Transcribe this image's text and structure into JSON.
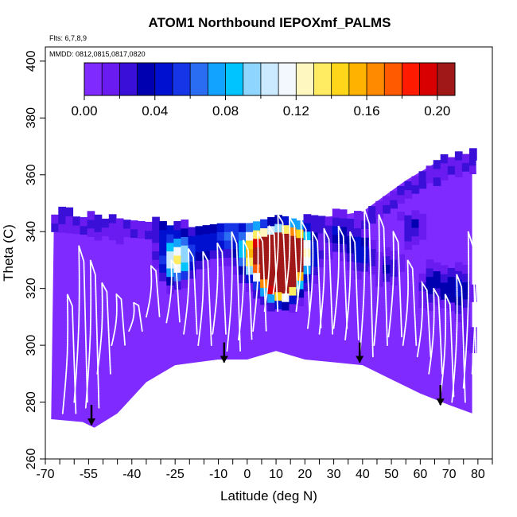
{
  "chart_data": {
    "type": "heatmap",
    "title": "ATOM1 Northbound IEPOXmf_PALMS",
    "xlabel": "Latitude (deg N)",
    "ylabel": "Theta (C)",
    "xlim": [
      -70,
      85
    ],
    "ylim": [
      260,
      405
    ],
    "x_ticks_labeled": [
      -70,
      -55,
      -40,
      -25,
      -10,
      0,
      10,
      20,
      30,
      40,
      50,
      60,
      70,
      80
    ],
    "x_ticks_minor": [
      -65,
      -60,
      -50,
      -45,
      -35,
      -30,
      -20,
      -15,
      -5,
      5,
      15,
      25,
      35,
      45,
      55,
      65,
      75,
      85
    ],
    "y_ticks": [
      260,
      280,
      300,
      320,
      340,
      360,
      380,
      400
    ],
    "flights_note": "Flts: 6,7,8,9",
    "dates_note": "MMDD: 0812,0815,0817,0820",
    "colorbar": {
      "range": [
        0.0,
        0.21
      ],
      "tick_values": [
        0.0,
        0.04,
        0.08,
        0.12,
        0.16,
        0.2
      ],
      "tick_labels": [
        "0.00",
        "0.04",
        "0.08",
        "0.12",
        "0.16",
        "0.20"
      ],
      "colors": [
        "#7f2aff",
        "#6a1bf0",
        "#3a0fd8",
        "#0000b0",
        "#0010d0",
        "#1535e6",
        "#2a6cf2",
        "#12a2ff",
        "#00c4ff",
        "#8ed6ff",
        "#cbe9ff",
        "#f3f8ff",
        "#fff7c0",
        "#ffec62",
        "#ffd61a",
        "#ffb300",
        "#ff8a00",
        "#ff5a00",
        "#ff1a00",
        "#d80000",
        "#a01818"
      ]
    },
    "background_value": 0.0,
    "envelope_lower": [
      [
        -68,
        274
      ],
      [
        -57,
        273
      ],
      [
        -53,
        271
      ],
      [
        -45,
        276
      ],
      [
        -35,
        287
      ],
      [
        -25,
        293
      ],
      [
        -10,
        295
      ],
      [
        0,
        295
      ],
      [
        10,
        298
      ],
      [
        20,
        295
      ],
      [
        30,
        294
      ],
      [
        40,
        293
      ],
      [
        50,
        288
      ],
      [
        60,
        283
      ],
      [
        70,
        279
      ],
      [
        78,
        276
      ]
    ],
    "envelope_upper": [
      [
        -67,
        346
      ],
      [
        -40,
        343
      ],
      [
        -20,
        341
      ],
      [
        0,
        343
      ],
      [
        20,
        344
      ],
      [
        40,
        347
      ],
      [
        55,
        358
      ],
      [
        65,
        364
      ],
      [
        72,
        366
      ],
      [
        78,
        367
      ]
    ],
    "high_value_cells": [
      [
        -27,
        328,
        0.08
      ],
      [
        -24,
        330,
        0.07
      ],
      [
        -16,
        335,
        0.05
      ],
      [
        -8,
        338,
        0.06
      ],
      [
        0,
        330,
        0.08
      ],
      [
        2,
        336,
        0.09
      ],
      [
        4,
        326,
        0.07
      ],
      [
        6,
        332,
        0.1
      ],
      [
        8,
        328,
        0.14
      ],
      [
        9,
        323,
        0.17
      ],
      [
        10,
        326,
        0.2
      ],
      [
        11,
        330,
        0.18
      ],
      [
        12,
        323,
        0.19
      ],
      [
        13,
        333,
        0.13
      ],
      [
        14,
        328,
        0.1
      ],
      [
        16,
        336,
        0.08
      ],
      [
        19,
        330,
        0.06
      ],
      [
        30,
        338,
        0.04
      ],
      [
        38,
        332,
        0.05
      ],
      [
        48,
        326,
        0.03
      ],
      [
        56,
        340,
        0.03
      ],
      [
        63,
        320,
        0.04
      ],
      [
        72,
        318,
        0.05
      ],
      [
        76,
        301,
        0.02
      ],
      [
        -30,
        340,
        0.04
      ],
      [
        -50,
        344,
        0.02
      ]
    ],
    "descent_markers_latitude": [
      -54,
      -8,
      39,
      67
    ],
    "descent_markers_theta": [
      278,
      300,
      300,
      285
    ]
  }
}
